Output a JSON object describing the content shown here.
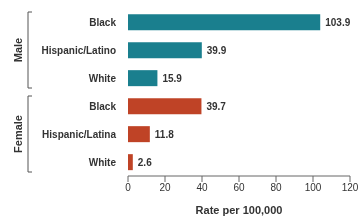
{
  "chart_data": {
    "type": "bar",
    "orientation": "horizontal",
    "xlabel": "Rate per 100,000",
    "categories": [
      "Black",
      "Hispanic/Latino",
      "White",
      "Black",
      "Hispanic/Latina",
      "White"
    ],
    "series": [
      {
        "name": "Male",
        "color": "#1a7f8e",
        "values": [
          103.9,
          39.9,
          15.9,
          null,
          null,
          null
        ]
      },
      {
        "name": "Female",
        "color": "#bf4326",
        "values": [
          null,
          null,
          null,
          39.7,
          11.8,
          2.6
        ]
      }
    ],
    "xlim": [
      0,
      120
    ],
    "xticks": [
      0,
      20,
      40,
      60,
      80,
      100,
      120
    ],
    "data_labels": true,
    "grid": false
  }
}
